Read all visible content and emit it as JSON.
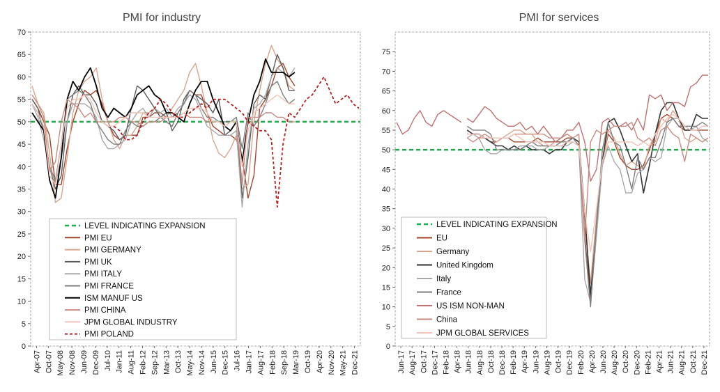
{
  "charts": [
    {
      "id": "industry",
      "title": "PMI for industry",
      "ylim": [
        0,
        70
      ],
      "yticks": [
        0,
        5,
        10,
        15,
        20,
        25,
        30,
        35,
        40,
        45,
        50,
        55,
        60,
        65,
        70
      ],
      "xlabels": [
        "Apr-07",
        "Oct-07",
        "May-08",
        "Nov-08",
        "Jun-09",
        "Dec-09",
        "Jul-10",
        "Jan-11",
        "Aug-11",
        "Feb-12",
        "Sep-12",
        "Mar-13",
        "Oct-13",
        "May-14",
        "Nov-14",
        "Jun-15",
        "Dec-15",
        "Jul-16",
        "Jan-17",
        "Aug-17",
        "Feb-18",
        "Sep-18",
        "Mar-19",
        "Oct-19",
        "Apr-20",
        "Nov-20",
        "May-21",
        "Dec-21"
      ]
    },
    {
      "id": "services",
      "title": "PMI for services",
      "ylim": [
        0,
        80
      ],
      "yticks": [
        0,
        5,
        10,
        15,
        20,
        25,
        30,
        35,
        40,
        45,
        50,
        55,
        60,
        65,
        70,
        75
      ],
      "xlabels": [
        "Jun-17",
        "Aug-17",
        "Oct-17",
        "Dec-17",
        "Feb-18",
        "Apr-18",
        "Jun-18",
        "Aug-18",
        "Oct-18",
        "Dec-18",
        "Feb-19",
        "Apr-19",
        "Jun-19",
        "Aug-19",
        "Oct-19",
        "Dec-19",
        "Feb-20",
        "Apr-20",
        "Jun-20",
        "Aug-20",
        "Oct-20",
        "Dec-20",
        "Feb-21",
        "Apr-21",
        "Jun-21",
        "Aug-21",
        "Oct-21",
        "Dec-21"
      ]
    }
  ],
  "chart_data": [
    {
      "type": "line",
      "title": "PMI for industry",
      "ylim": [
        0,
        70
      ],
      "x_start": "Apr-07",
      "x_end": "Dec-21",
      "legend_placement": "bottom-left",
      "series": [
        {
          "name": "LEVEL INDICATING EXPANSION",
          "color": "#1faa4b",
          "dash": "6,4",
          "width": 2.5,
          "values": [
            50,
            50
          ]
        },
        {
          "name": "PMI EU",
          "color": "#a0442c",
          "width": 1.4,
          "values": [
            55,
            53,
            50,
            47,
            36,
            36,
            44,
            50,
            54,
            57,
            56,
            57,
            54,
            50,
            47,
            46,
            47,
            47,
            47,
            51,
            51,
            52,
            52,
            51,
            51,
            52,
            54,
            57,
            56,
            56,
            52,
            49,
            48,
            47,
            47,
            46,
            42,
            33,
            38,
            53,
            55,
            58,
            62,
            63,
            60,
            58
          ]
        },
        {
          "name": "PMI GERMANY",
          "color": "#d9a48e",
          "width": 1.4,
          "values": [
            58,
            54,
            52,
            43,
            32,
            33,
            42,
            52,
            57,
            59,
            60,
            62,
            55,
            50,
            46,
            44,
            47,
            47,
            49,
            52,
            52,
            53,
            51,
            51,
            53,
            55,
            57,
            61,
            63,
            58,
            52,
            46,
            43,
            42,
            44,
            47,
            35,
            36,
            50,
            57,
            63,
            67,
            64,
            62,
            58,
            57
          ]
        },
        {
          "name": "PMI UK",
          "color": "#5a5a5a",
          "width": 1.4,
          "values": [
            55,
            53,
            48,
            40,
            35,
            38,
            50,
            56,
            58,
            56,
            56,
            54,
            50,
            49,
            48,
            46,
            47,
            53,
            58,
            57,
            55,
            53,
            51,
            52,
            48,
            50,
            55,
            57,
            56,
            55,
            54,
            52,
            55,
            47,
            48,
            50,
            33,
            42,
            54,
            56,
            55,
            60,
            65,
            62,
            57,
            57
          ]
        },
        {
          "name": "PMI ITALY",
          "color": "#a8a8a8",
          "width": 1.4,
          "values": [
            54,
            51,
            46,
            40,
            36,
            42,
            50,
            54,
            54,
            54,
            53,
            51,
            46,
            44,
            44,
            45,
            46,
            50,
            52,
            53,
            51,
            53,
            52,
            53,
            51,
            53,
            54,
            56,
            55,
            52,
            49,
            48,
            47,
            47,
            47,
            48,
            31,
            45,
            53,
            54,
            56,
            60,
            62,
            61,
            60,
            62
          ]
        },
        {
          "name": "PMI FRANCE",
          "color": "#7e7e7e",
          "width": 1.4,
          "values": [
            54,
            52,
            48,
            40,
            37,
            45,
            55,
            56,
            57,
            56,
            54,
            50,
            48,
            46,
            45,
            45,
            48,
            50,
            49,
            49,
            50,
            50,
            51,
            50,
            49,
            52,
            54,
            57,
            56,
            53,
            51,
            51,
            50,
            50,
            50,
            51,
            44,
            52,
            49,
            51,
            54,
            58,
            59,
            56,
            54,
            55
          ]
        },
        {
          "name": "ISM MANUF US",
          "color": "#000000",
          "width": 1.8,
          "values": [
            52,
            50,
            48,
            37,
            33,
            42,
            55,
            59,
            57,
            60,
            62,
            58,
            53,
            51,
            53,
            52,
            51,
            53,
            56,
            57,
            58,
            56,
            55,
            52,
            52,
            51,
            50,
            54,
            57,
            59,
            59,
            55,
            52,
            49,
            48,
            50,
            41,
            50,
            56,
            59,
            64,
            61,
            61,
            61,
            60,
            61
          ]
        },
        {
          "name": "PMI CHINA",
          "color": "#c98a80",
          "width": 1.4,
          "values": [
            56,
            54,
            51,
            39,
            41,
            50,
            55,
            54,
            53,
            51,
            52,
            50,
            50,
            50,
            50,
            51,
            51,
            50,
            50,
            49,
            50,
            50,
            50,
            51,
            51,
            51,
            52,
            51,
            51,
            51,
            50,
            50,
            50,
            49,
            50,
            50,
            36,
            51,
            51,
            51,
            52,
            52,
            51,
            51,
            50,
            50
          ]
        },
        {
          "name": "JPM GLOBAL INDUSTRY",
          "color": "#f0c4b8",
          "width": 1.4,
          "values": [
            54,
            52,
            49,
            38,
            36,
            45,
            53,
            55,
            55,
            56,
            55,
            52,
            50,
            49,
            49,
            50,
            51,
            52,
            52,
            52,
            51,
            51,
            51,
            51,
            51,
            51,
            52,
            53,
            53,
            53,
            52,
            50,
            50,
            49,
            50,
            50,
            40,
            48,
            52,
            53,
            54,
            55,
            56,
            55,
            54,
            54
          ]
        },
        {
          "name": "PMI POLAND",
          "color": "#b32020",
          "dash": "4,3",
          "width": 1.8,
          "start_index": 14,
          "values": [
            49,
            48,
            46,
            46,
            47,
            50,
            52,
            53,
            55,
            54,
            52,
            51,
            51,
            52,
            53,
            54,
            53,
            55,
            55,
            55,
            54,
            53,
            52,
            50,
            49,
            48,
            48,
            46,
            31,
            45,
            52,
            51,
            53,
            55,
            56,
            58,
            60,
            57,
            54,
            55,
            56,
            54,
            53
          ]
        }
      ]
    },
    {
      "type": "line",
      "title": "PMI for services",
      "ylim": [
        0,
        80
      ],
      "x_start": "Jun-17",
      "x_end": "Dec-21",
      "legend_placement": "bottom-left",
      "series": [
        {
          "name": "LEVEL INDICATING EXPANSION",
          "color": "#1faa4b",
          "dash": "6,4",
          "width": 2.5,
          "values": [
            50,
            50
          ]
        },
        {
          "name": "EU",
          "color": "#a0442c",
          "width": 1.4,
          "start_index": 12,
          "values": [
            55,
            54,
            54,
            53,
            52,
            52,
            53,
            53,
            52,
            52,
            52,
            52,
            53,
            52,
            52,
            52,
            52,
            53,
            53,
            52,
            28,
            12,
            30,
            47,
            54,
            52,
            48,
            46,
            45,
            45,
            46,
            50,
            54,
            58,
            59,
            58,
            56,
            55,
            55,
            55,
            55,
            55
          ]
        },
        {
          "name": "Germany",
          "color": "#d9a48e",
          "width": 1.4,
          "start_index": 12,
          "values": [
            54,
            54,
            53,
            53,
            53,
            52,
            53,
            54,
            55,
            55,
            54,
            54,
            52,
            51,
            51,
            52,
            53,
            54,
            53,
            52,
            31,
            16,
            33,
            46,
            55,
            53,
            49,
            46,
            47,
            46,
            45,
            51,
            52,
            58,
            57,
            60,
            58,
            53,
            52,
            53,
            52,
            53
          ]
        },
        {
          "name": "United Kingdom",
          "color": "#333333",
          "width": 1.6,
          "start_index": 12,
          "values": [
            55,
            54,
            54,
            53,
            52,
            51,
            51,
            50,
            51,
            50,
            51,
            50,
            50,
            50,
            49,
            50,
            50,
            52,
            53,
            52,
            34,
            13,
            30,
            47,
            57,
            58,
            55,
            51,
            47,
            49,
            39,
            46,
            54,
            60,
            62,
            62,
            58,
            55,
            55,
            59,
            58,
            58
          ]
        },
        {
          "name": "Italy",
          "color": "#a8a8a8",
          "width": 1.4,
          "start_index": 12,
          "values": [
            53,
            54,
            53,
            50,
            49,
            49,
            50,
            50,
            50,
            51,
            51,
            51,
            50,
            50,
            51,
            51,
            51,
            51,
            52,
            51,
            17,
            11,
            28,
            46,
            51,
            47,
            45,
            39,
            39,
            44,
            45,
            48,
            47,
            48,
            56,
            58,
            58,
            56,
            55,
            56,
            53,
            52
          ]
        },
        {
          "name": "France",
          "color": "#7e7e7e",
          "width": 1.4,
          "start_index": 12,
          "values": [
            56,
            55,
            55,
            55,
            54,
            50,
            50,
            50,
            50,
            50,
            51,
            52,
            51,
            51,
            51,
            51,
            52,
            52,
            53,
            51,
            27,
            10,
            31,
            50,
            57,
            52,
            51,
            46,
            40,
            48,
            45,
            48,
            48,
            52,
            57,
            58,
            56,
            56,
            56,
            56,
            57,
            56
          ]
        },
        {
          "name": "US ISM NON-MAN",
          "color": "#c07070",
          "width": 1.4,
          "start_index": 12,
          "values": [
            58,
            57,
            59,
            61,
            60,
            58,
            57,
            56,
            56,
            57,
            55,
            56,
            54,
            56,
            54,
            52,
            53,
            55,
            55,
            57,
            52,
            42,
            45,
            57,
            58,
            56,
            56,
            57,
            55,
            58,
            55,
            64,
            63,
            64,
            60,
            62,
            62,
            61,
            66,
            67,
            69,
            69
          ]
        },
        {
          "name": "China",
          "color": "#c98a80",
          "width": 1.4,
          "start_index": 12,
          "values": [
            53,
            52,
            53,
            54,
            53,
            53,
            53,
            53,
            54,
            54,
            54,
            54,
            54,
            54,
            53,
            53,
            53,
            54,
            53,
            54,
            27,
            52,
            55,
            54,
            55,
            56,
            56,
            56,
            57,
            53,
            52,
            53,
            51,
            55,
            56,
            54,
            53,
            47,
            54,
            53,
            52,
            53
          ]
        },
        {
          "name": "JPM GLOBAL SERVICES",
          "color": "#f0c4b8",
          "width": 1.4,
          "start_index": 12,
          "values": [
            54,
            54,
            54,
            53,
            53,
            53,
            53,
            53,
            54,
            53,
            52,
            52,
            52,
            52,
            51,
            51,
            51,
            52,
            52,
            51,
            34,
            24,
            35,
            47,
            52,
            52,
            52,
            52,
            52,
            51,
            52,
            51,
            54,
            56,
            58,
            59,
            58,
            56,
            55,
            55,
            56,
            56
          ]
        },
        {
          "name": "",
          "color": "#c07070",
          "width": 1.4,
          "values": [
            57,
            54,
            55,
            58,
            60,
            57,
            56,
            59,
            60,
            59,
            58,
            57
          ]
        }
      ]
    }
  ]
}
